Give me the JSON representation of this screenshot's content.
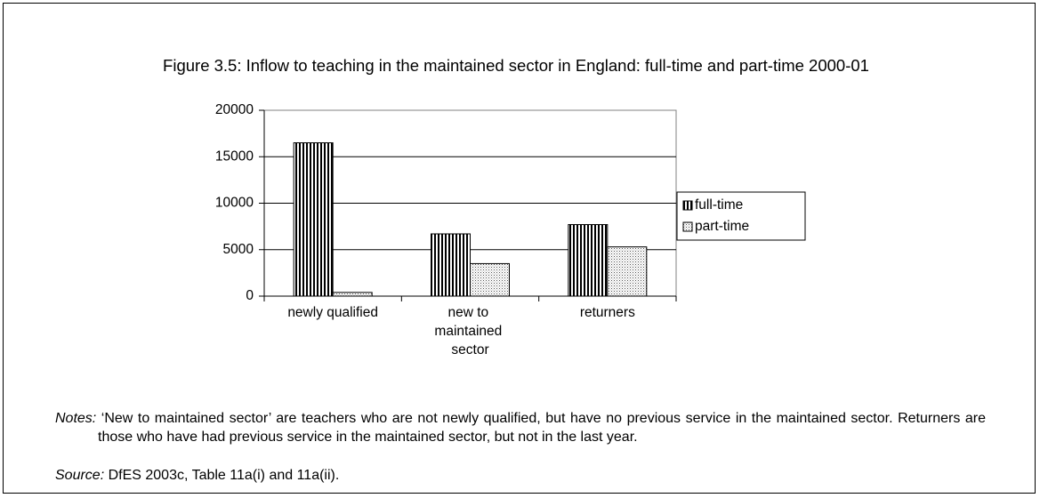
{
  "chart_data": {
    "type": "bar",
    "title": "Figure 3.5: Inflow to teaching in the maintained sector in England: full-time and part-time 2000-01",
    "categories": [
      "newly qualified",
      "new to maintained sector",
      "returners"
    ],
    "series": [
      {
        "name": "full-time",
        "color": "#000000",
        "values": [
          16500,
          6700,
          7700
        ]
      },
      {
        "name": "part-time",
        "color": "#b0b0b0",
        "values": [
          400,
          3500,
          5300
        ]
      }
    ],
    "ylim": [
      0,
      20000
    ],
    "yticks": [
      0,
      5000,
      10000,
      15000,
      20000
    ],
    "grid": true,
    "legend": "right"
  },
  "notes_label": "Notes:",
  "notes": "‘New to maintained sector’ are teachers who are not newly qualified, but have no previous service in the maintained sector. Returners are those who have had previous service in the maintained sector, but not in the last year.",
  "source_label": "Source:",
  "source": "DfES 2003c, Table 11a(i) and 11a(ii)."
}
